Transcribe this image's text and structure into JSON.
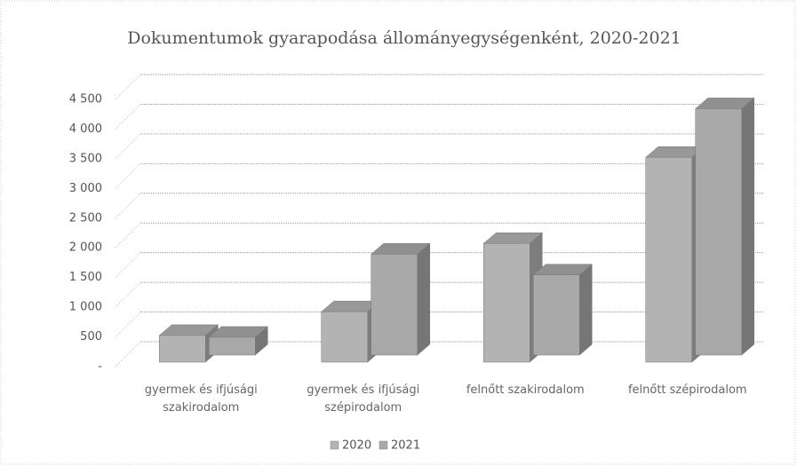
{
  "chart_data": {
    "type": "bar3d",
    "title": "Dokumentumok gyarapodása állományegységenként, 2020-2021",
    "categories": [
      "gyermek és ifjúsági szakirodalom",
      "gyermek és ifjúsági szépirodalom",
      "felnőtt szakirodalom",
      "felnőtt szépirodalom"
    ],
    "series": [
      {
        "name": "2020",
        "color": "#b3b3b3",
        "values": [
          450,
          850,
          2000,
          3450
        ]
      },
      {
        "name": "2021",
        "color": "#a9a9a9",
        "values": [
          300,
          1700,
          1350,
          4150
        ]
      }
    ],
    "ylim": [
      0,
      4500
    ],
    "yticks": [
      {
        "value": 0,
        "label": "-"
      },
      500,
      {
        "value": 1000,
        "label": "1 000"
      },
      {
        "value": 1500,
        "label": "1 500"
      },
      {
        "value": 2000,
        "label": "2 000"
      },
      {
        "value": 2500,
        "label": "2 500"
      },
      {
        "value": 3000,
        "label": "3 000"
      },
      {
        "value": 3500,
        "label": "3 500"
      },
      {
        "value": 4000,
        "label": "4 000"
      },
      {
        "value": 4500,
        "label": "4 500"
      }
    ],
    "grid": true
  }
}
